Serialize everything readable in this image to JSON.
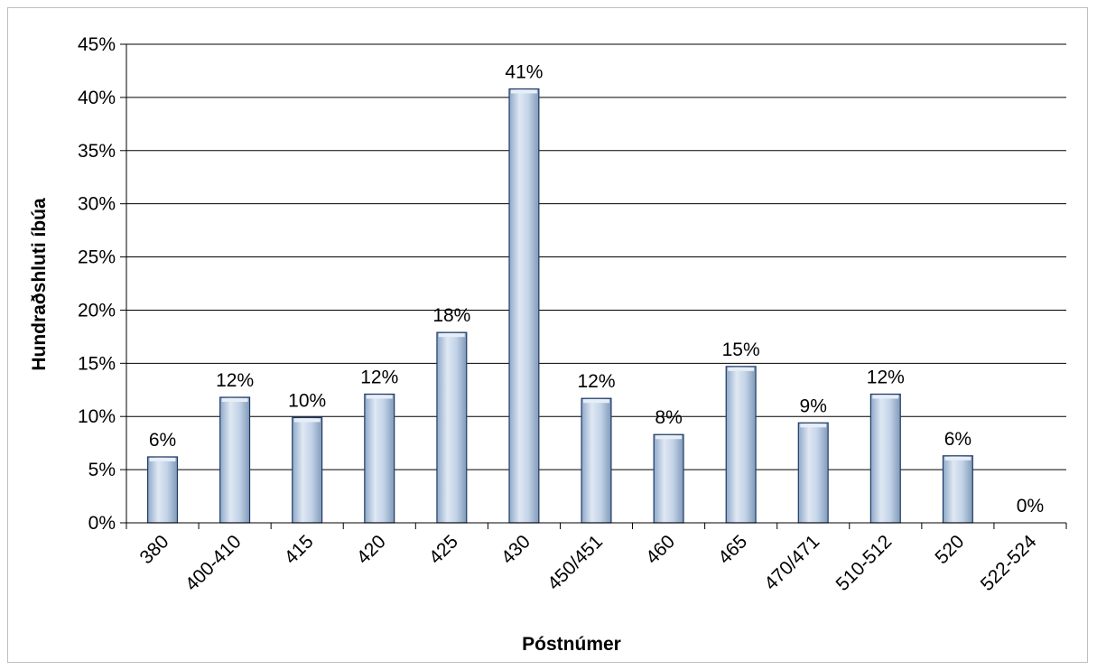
{
  "chart_data": {
    "type": "bar",
    "title": "",
    "xlabel": "Póstnúmer",
    "ylabel": "Hundraðshluti íbúa",
    "categories": [
      "380",
      "400-410",
      "415",
      "420",
      "425",
      "430",
      "450/451",
      "460",
      "465",
      "470/471",
      "510-512",
      "520",
      "522-524"
    ],
    "values": [
      6.2,
      11.8,
      9.9,
      12.1,
      17.9,
      40.8,
      11.7,
      8.3,
      14.7,
      9.4,
      12.1,
      6.3,
      0
    ],
    "data_labels": [
      "6%",
      "12%",
      "10%",
      "12%",
      "18%",
      "41%",
      "12%",
      "8%",
      "15%",
      "9%",
      "12%",
      "6%",
      "0%"
    ],
    "ylim": [
      0,
      45
    ],
    "yticks": [
      0,
      5,
      10,
      15,
      20,
      25,
      30,
      35,
      40,
      45
    ],
    "ytick_labels": [
      "0%",
      "5%",
      "10%",
      "15%",
      "20%",
      "25%",
      "30%",
      "35%",
      "40%",
      "45%"
    ],
    "grid": true,
    "legend": "none",
    "colors": {
      "bar_fill": "#b8cce4",
      "bar_highlight": "#e6eef8",
      "bar_edge": "#1f3864",
      "gridline": "#000000"
    }
  }
}
